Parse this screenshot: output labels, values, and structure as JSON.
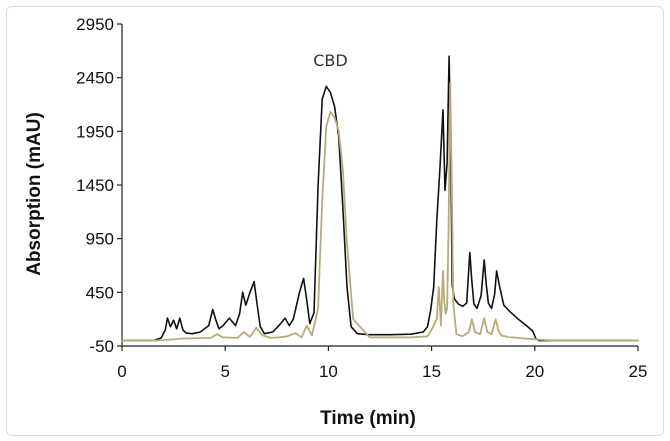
{
  "chart_data": {
    "type": "line",
    "title": "",
    "xlabel": "Time (min)",
    "ylabel": "Absorption (mAU)",
    "xlim": [
      0,
      25
    ],
    "ylim": [
      -50,
      2950
    ],
    "x_ticks": [
      "0",
      "5",
      "10",
      "15",
      "20",
      "25"
    ],
    "y_ticks": [
      "-50",
      "450",
      "950",
      "1450",
      "1950",
      "2450",
      "2950"
    ],
    "grid": false,
    "legend": "none",
    "annotations": [
      {
        "text": "CBD",
        "x": 10.1,
        "y": 2560
      }
    ],
    "colors": {
      "series_black": "#111111",
      "series_olive": "#b5ac7a",
      "axis": "#222222"
    },
    "series": [
      {
        "color": "#111111",
        "x": [
          0,
          1.5,
          1.9,
          2.1,
          2.2,
          2.35,
          2.5,
          2.65,
          2.8,
          2.95,
          3.1,
          3.4,
          3.8,
          4.2,
          4.4,
          4.55,
          4.7,
          4.9,
          5.2,
          5.5,
          5.7,
          5.85,
          6.0,
          6.2,
          6.4,
          6.55,
          6.7,
          6.9,
          7.3,
          7.6,
          7.9,
          8.1,
          8.3,
          8.6,
          8.8,
          8.95,
          9.1,
          9.3,
          9.5,
          9.7,
          9.9,
          10.1,
          10.3,
          10.5,
          10.7,
          10.9,
          11.1,
          11.4,
          12,
          13,
          14,
          14.6,
          14.8,
          14.95,
          15.1,
          15.25,
          15.4,
          15.55,
          15.65,
          15.75,
          15.85,
          15.92,
          16.0,
          16.1,
          16.3,
          16.5,
          16.7,
          16.85,
          16.95,
          17.05,
          17.2,
          17.4,
          17.55,
          17.65,
          17.75,
          17.9,
          18.05,
          18.15,
          18.3,
          18.5,
          18.8,
          19.2,
          19.6,
          19.9,
          20.05,
          20.2,
          21,
          25
        ],
        "y": [
          0,
          0,
          25,
          100,
          210,
          130,
          190,
          110,
          210,
          100,
          70,
          65,
          80,
          140,
          290,
          190,
          110,
          140,
          210,
          140,
          250,
          450,
          330,
          450,
          550,
          330,
          130,
          65,
          80,
          140,
          210,
          140,
          200,
          450,
          580,
          380,
          160,
          260,
          1450,
          2250,
          2370,
          2310,
          2180,
          1900,
          1250,
          500,
          130,
          65,
          55,
          55,
          60,
          80,
          130,
          280,
          500,
          1120,
          1600,
          2150,
          1400,
          1650,
          2650,
          1900,
          520,
          390,
          340,
          320,
          350,
          820,
          560,
          340,
          300,
          420,
          750,
          520,
          350,
          300,
          430,
          650,
          500,
          330,
          270,
          200,
          140,
          90,
          20,
          0,
          0,
          0
        ]
      },
      {
        "color": "#b5ac7a",
        "x": [
          0,
          1.5,
          2,
          3,
          4.3,
          4.6,
          4.9,
          5.6,
          5.9,
          6.2,
          6.5,
          6.8,
          7.2,
          7.6,
          8,
          8.4,
          8.7,
          8.95,
          9.2,
          9.5,
          9.7,
          9.9,
          10.1,
          10.3,
          10.5,
          10.7,
          10.9,
          11.2,
          12,
          14,
          14.8,
          15.05,
          15.25,
          15.35,
          15.45,
          15.55,
          15.6,
          15.68,
          15.75,
          15.82,
          15.9,
          15.97,
          16.05,
          16.2,
          16.5,
          16.8,
          16.95,
          17.1,
          17.35,
          17.55,
          17.7,
          17.9,
          18.1,
          18.25,
          18.4,
          18.7,
          19.5,
          20.2,
          21,
          25
        ],
        "y": [
          0,
          0,
          5,
          20,
          25,
          60,
          30,
          25,
          80,
          35,
          120,
          50,
          25,
          30,
          40,
          70,
          30,
          140,
          50,
          300,
          1300,
          2000,
          2130,
          2080,
          1950,
          1600,
          900,
          200,
          30,
          30,
          40,
          120,
          200,
          500,
          140,
          650,
          400,
          250,
          300,
          1000,
          2400,
          1600,
          350,
          60,
          40,
          80,
          200,
          80,
          60,
          210,
          80,
          60,
          200,
          90,
          45,
          35,
          20,
          10,
          0,
          0
        ]
      }
    ]
  }
}
